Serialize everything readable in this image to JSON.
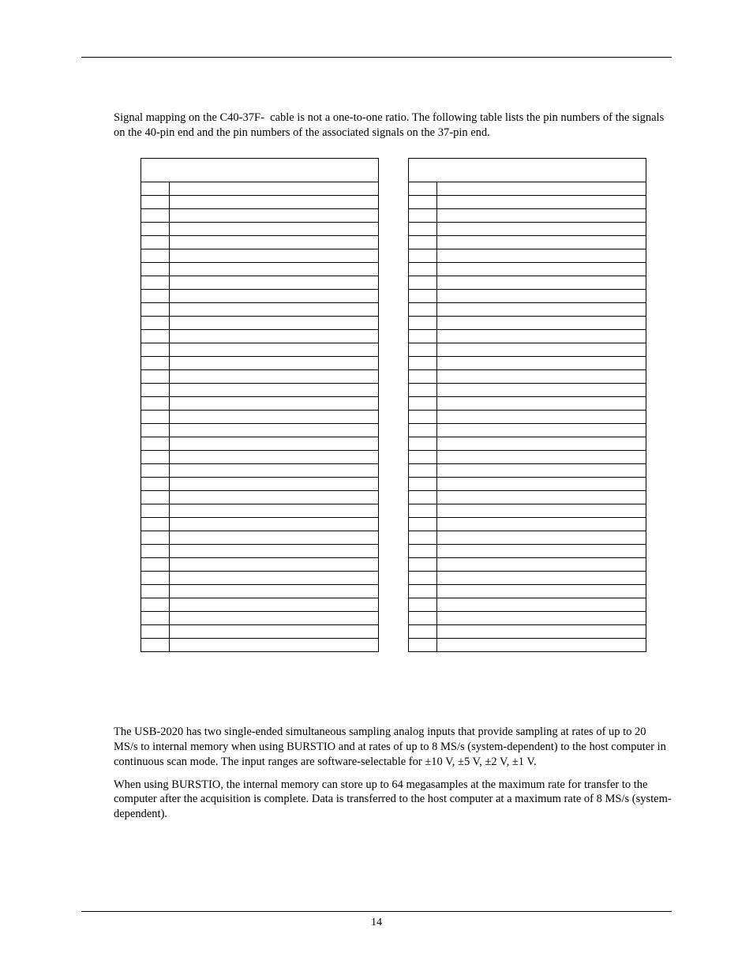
{
  "intro_para": "Signal mapping on the C40-37F-  cable is not a one-to-one ratio. The following table lists the pin numbers of the signals on the 40-pin end and the pin numbers of the associated signals on the 37-pin end.",
  "para2": "The USB-2020 has two single-ended simultaneous sampling analog inputs that provide sampling at rates of up to 20 MS/s to internal memory when using BURSTIO and at rates of up to 8 MS/s (system-dependent) to the host computer in continuous scan mode. The input ranges are software-selectable for ±10 V, ±5 V, ±2 V, ±1 V.",
  "para3": "When using BURSTIO, the internal memory can store up to 64 megasamples at the maximum rate for transfer to the computer after the acquisition is complete. Data is transferred to the host computer at a maximum rate of 8 MS/s (system-dependent).",
  "page_number": "14",
  "table": {
    "row_count": 35,
    "border_color": "#000000"
  }
}
